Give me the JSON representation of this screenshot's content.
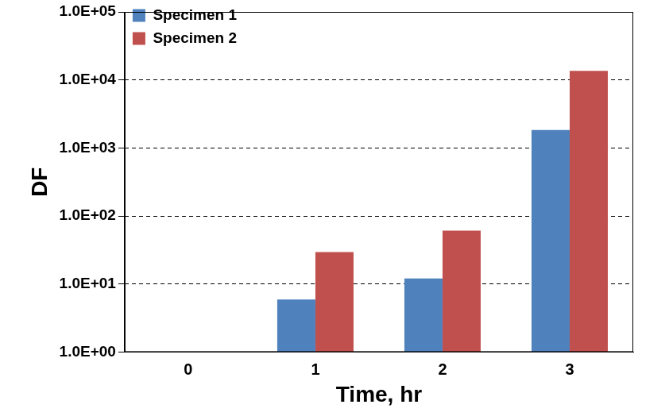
{
  "chart_data": {
    "type": "bar",
    "x_label": "Time, hr",
    "y_label": "DF",
    "categories": [
      "0",
      "1",
      "2",
      "3"
    ],
    "series": [
      {
        "name": "Specimen 1",
        "color": "#4f81bd",
        "values": [
          1,
          5.9,
          12.1,
          1840
        ]
      },
      {
        "name": "Specimen 2",
        "color": "#c0504d",
        "values": [
          1,
          29.5,
          60.7,
          13580
        ]
      }
    ],
    "log": "y",
    "ylim": [
      1,
      100000
    ],
    "yticks": [
      {
        "value": 1,
        "label": "1.0E+00"
      },
      {
        "value": 10,
        "label": "1.0E+01"
      },
      {
        "value": 100,
        "label": "1.0E+02"
      },
      {
        "value": 1000,
        "label": "1.0E+03"
      },
      {
        "value": 10000,
        "label": "1.0E+04"
      },
      {
        "value": 100000,
        "label": "1.0E+05"
      }
    ],
    "grid": true,
    "legend": "top-left"
  }
}
